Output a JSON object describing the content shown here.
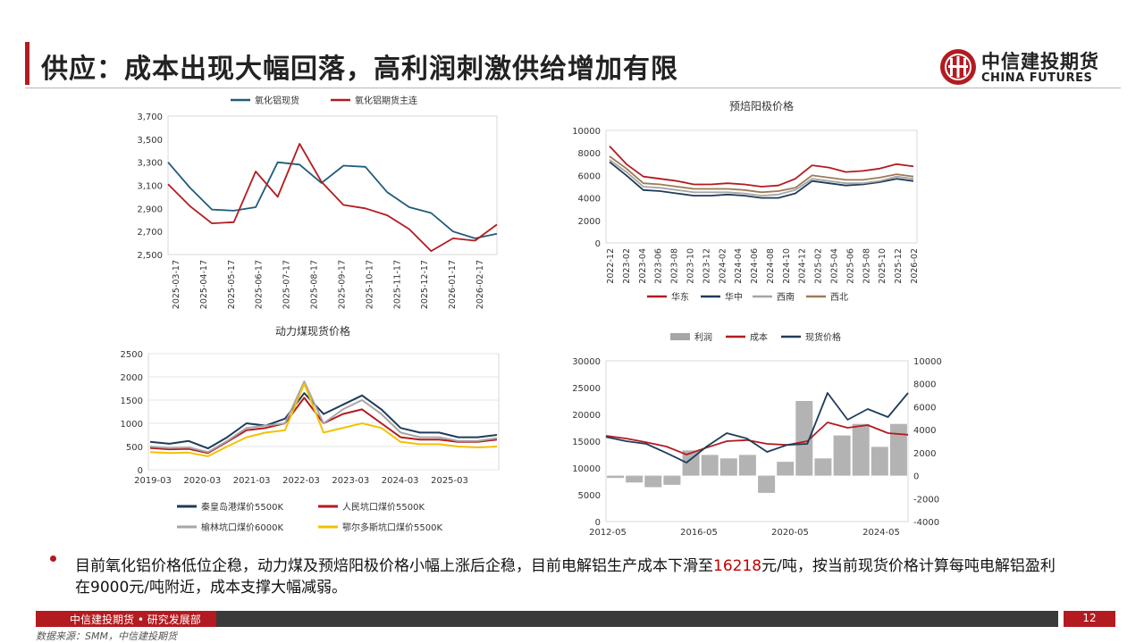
{
  "title": "供应：成本出现大幅回落，高利润刺激供给增加有限",
  "logo": {
    "cn": "中信建投期货",
    "en": "CHINA FUTURES"
  },
  "bullet": {
    "part1": "目前氧化铝价格低位企稳，动力煤及预焙阳极价格小幅上涨后企稳，目前电解铝生产成本下滑至",
    "highlight": "16218",
    "part2": "元/吨，按当前现货价格计算每吨电解铝盈利在9000元/吨附近，成本支撑大幅减弱。"
  },
  "footer": {
    "label": "中信建投期货 • 研究发展部",
    "page": "12",
    "source": "数据来源：SMM，中信建投期货"
  },
  "colors": {
    "brand": "#b31b20",
    "teal": "#1f5c7a",
    "red": "#b31b20",
    "navy": "#1f3b5a",
    "gray": "#a6a6a6",
    "yellow": "#f2c200",
    "brown": "#9c7a55"
  },
  "chart_data": [
    {
      "type": "line",
      "title": "",
      "legend_position": "top",
      "ylim": [
        2500,
        3700
      ],
      "yticks": [
        "2,500",
        "2,700",
        "2,900",
        "3,100",
        "3,300",
        "3,500",
        "3,700"
      ],
      "x_labels": [
        "2025-03-17",
        "2025-04-17",
        "2025-05-17",
        "2025-06-17",
        "2025-07-17",
        "2025-08-17",
        "2025-09-17",
        "2025-10-17",
        "2025-11-17",
        "2025-12-17",
        "2026-01-17",
        "2026-02-17"
      ],
      "series": [
        {
          "name": "氧化铝现货",
          "color": "teal",
          "values": [
            3300,
            3080,
            2890,
            2880,
            2910,
            3300,
            3280,
            3120,
            3270,
            3260,
            3040,
            2910,
            2860,
            2700,
            2640,
            2680
          ]
        },
        {
          "name": "氧化铝期货主连",
          "color": "red",
          "values": [
            3110,
            2920,
            2770,
            2780,
            3220,
            3000,
            3460,
            3130,
            2930,
            2900,
            2840,
            2720,
            2530,
            2640,
            2620,
            2760
          ]
        }
      ]
    },
    {
      "type": "line",
      "title": "预焙阳极价格",
      "legend_position": "bottom",
      "ylim": [
        0,
        10000
      ],
      "yticks": [
        "0",
        "2000",
        "4000",
        "6000",
        "8000",
        "10000"
      ],
      "x_labels": [
        "2022-12",
        "2023-02",
        "2023-04",
        "2023-06",
        "2023-08",
        "2023-10",
        "2023-12",
        "2024-02",
        "2024-04",
        "2024-06",
        "2024-08",
        "2024-10",
        "2024-12",
        "2025-02",
        "2025-04",
        "2025-06",
        "2025-08",
        "2025-10",
        "2025-12",
        "2026-02"
      ],
      "series": [
        {
          "name": "华东",
          "color": "red",
          "values": [
            8600,
            7000,
            5900,
            5700,
            5500,
            5200,
            5200,
            5300,
            5200,
            5000,
            5100,
            5700,
            6900,
            6700,
            6300,
            6400,
            6600,
            7000,
            6800
          ]
        },
        {
          "name": "华中",
          "color": "navy",
          "values": [
            7200,
            6000,
            4700,
            4600,
            4400,
            4200,
            4200,
            4300,
            4200,
            4000,
            4000,
            4400,
            5500,
            5300,
            5100,
            5200,
            5400,
            5700,
            5500
          ]
        },
        {
          "name": "西南",
          "color": "gray",
          "values": [
            7400,
            6300,
            5000,
            4900,
            4700,
            4500,
            4500,
            4500,
            4400,
            4200,
            4300,
            4700,
            5700,
            5500,
            5300,
            5300,
            5500,
            5900,
            5700
          ]
        },
        {
          "name": "西北",
          "color": "brown",
          "values": [
            7700,
            6600,
            5300,
            5200,
            5000,
            4800,
            4800,
            4800,
            4700,
            4500,
            4600,
            4900,
            6000,
            5800,
            5600,
            5600,
            5800,
            6100,
            5900
          ]
        }
      ]
    },
    {
      "type": "line",
      "title": "动力煤现货价格",
      "legend_position": "bottom",
      "ylim": [
        0,
        2500
      ],
      "yticks": [
        "0",
        "500",
        "1000",
        "1500",
        "2000",
        "2500"
      ],
      "x_labels": [
        "2019-03",
        "2020-03",
        "2021-03",
        "2022-03",
        "2023-03",
        "2024-03",
        "2025-03"
      ],
      "series": [
        {
          "name": "秦皇岛港煤价5500K",
          "color": "navy",
          "values": [
            600,
            560,
            620,
            460,
            700,
            1000,
            950,
            1100,
            1650,
            1200,
            1400,
            1600,
            1300,
            900,
            800,
            800,
            700,
            700,
            750
          ]
        },
        {
          "name": "人民坑口煤价5500K",
          "color": "red",
          "values": [
            470,
            440,
            450,
            360,
            600,
            850,
            900,
            1000,
            1550,
            1000,
            1200,
            1300,
            1000,
            700,
            650,
            650,
            600,
            600,
            650
          ]
        },
        {
          "name": "榆林坑口煤价6000K",
          "color": "gray",
          "values": [
            500,
            470,
            480,
            380,
            620,
            900,
            950,
            1000,
            1900,
            1000,
            1300,
            1500,
            1200,
            800,
            700,
            700,
            620,
            620,
            680
          ]
        },
        {
          "name": "鄂尔多斯坑口煤价5500K",
          "color": "yellow",
          "values": [
            380,
            360,
            370,
            290,
            500,
            700,
            800,
            850,
            1850,
            800,
            900,
            1000,
            900,
            600,
            550,
            550,
            500,
            480,
            500
          ]
        }
      ]
    },
    {
      "type": "line",
      "title": "",
      "legend_position": "top",
      "ylim_left": [
        0,
        30000
      ],
      "yticks_left": [
        "0",
        "5000",
        "10000",
        "15000",
        "20000",
        "25000",
        "30000"
      ],
      "ylim_right": [
        -4000,
        10000
      ],
      "yticks_right": [
        "-4000",
        "-2000",
        "0",
        "2000",
        "4000",
        "6000",
        "8000",
        "10000"
      ],
      "x_labels": [
        "2012-05",
        "2016-05",
        "2020-05",
        "2024-05"
      ],
      "series": [
        {
          "name": "利润",
          "color": "gray",
          "axis": "right",
          "values": [
            -200,
            -600,
            -1000,
            -800,
            2200,
            1800,
            1500,
            1800,
            -1500,
            1200,
            6500,
            1500,
            3500,
            4500,
            2500,
            4500
          ]
        },
        {
          "name": "成本",
          "color": "red",
          "axis": "left",
          "values": [
            16000,
            15500,
            14800,
            14000,
            12500,
            13800,
            15000,
            15200,
            14500,
            14300,
            15000,
            18500,
            17500,
            18000,
            16500,
            16200
          ]
        },
        {
          "name": "现货价格",
          "color": "navy",
          "axis": "left",
          "values": [
            15800,
            15000,
            14500,
            12800,
            11000,
            14000,
            16500,
            15500,
            13000,
            14300,
            14500,
            24000,
            19000,
            21000,
            19500,
            24000
          ]
        }
      ]
    }
  ]
}
